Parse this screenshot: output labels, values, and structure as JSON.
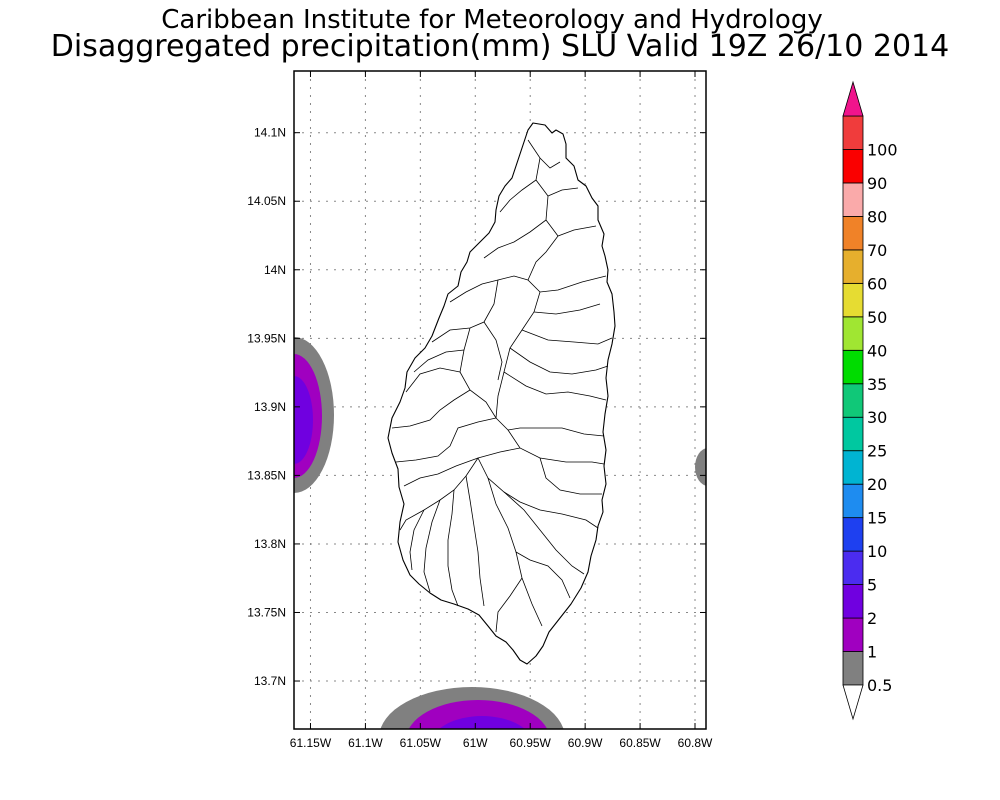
{
  "titles": {
    "line1": "Caribbean Institute for Meteorology and Hydrology",
    "line2": "Disaggregated precipitation(mm) SLU Valid 19Z 26/10 2014"
  },
  "map": {
    "lon_range": [
      -61.165,
      -60.79
    ],
    "lat_range": [
      13.665,
      14.145
    ],
    "lon_ticks": [
      {
        "v": -61.15,
        "label": "61.15W"
      },
      {
        "v": -61.1,
        "label": "61.1W"
      },
      {
        "v": -61.05,
        "label": "61.05W"
      },
      {
        "v": -61.0,
        "label": "61W"
      },
      {
        "v": -60.95,
        "label": "60.95W"
      },
      {
        "v": -60.9,
        "label": "60.9W"
      },
      {
        "v": -60.85,
        "label": "60.85W"
      },
      {
        "v": -60.8,
        "label": "60.8W"
      }
    ],
    "lat_ticks": [
      {
        "v": 14.1,
        "label": "14.1N"
      },
      {
        "v": 14.05,
        "label": "14.05N"
      },
      {
        "v": 14.0,
        "label": "14N"
      },
      {
        "v": 13.95,
        "label": "13.95N"
      },
      {
        "v": 13.9,
        "label": "13.9N"
      },
      {
        "v": 13.85,
        "label": "13.85N"
      },
      {
        "v": 13.8,
        "label": "13.8N"
      },
      {
        "v": 13.75,
        "label": "13.75N"
      },
      {
        "v": 13.7,
        "label": "13.7N"
      }
    ],
    "gridlines": true
  },
  "colorbar": {
    "labels": [
      "0.5",
      "1",
      "2",
      "5",
      "10",
      "15",
      "20",
      "25",
      "30",
      "35",
      "40",
      "50",
      "60",
      "70",
      "80",
      "90",
      "100"
    ],
    "colors": [
      "#808080",
      "#a000c0",
      "#7000e0",
      "#4b2cf0",
      "#1e40f0",
      "#1e8cf0",
      "#00b4d2",
      "#00c8a0",
      "#10c878",
      "#00dc00",
      "#a0e632",
      "#e6dc32",
      "#e6af2d",
      "#f08228",
      "#faaaaa",
      "#fa0000",
      "#f03c3c"
    ],
    "under_color": "#ffffff",
    "over_color": "#f0148c"
  }
}
